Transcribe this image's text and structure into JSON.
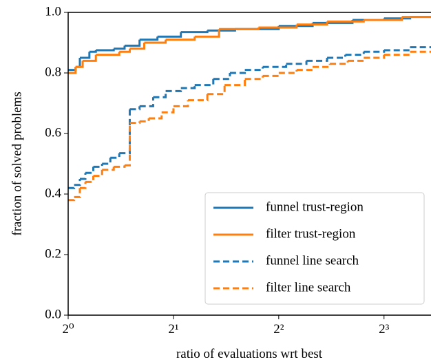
{
  "chart_data": {
    "type": "step",
    "xlabel": "ratio of evaluations wrt best",
    "ylabel": "fraction of solved problems",
    "xscale": "log2",
    "xlim": [
      1,
      10.9
    ],
    "ylim": [
      0,
      1
    ],
    "xticks": [
      {
        "value": 1,
        "label": "2⁰"
      },
      {
        "value": 2,
        "label": "2¹"
      },
      {
        "value": 4,
        "label": "2²"
      },
      {
        "value": 8,
        "label": "2³"
      }
    ],
    "yticks": [
      {
        "value": 0,
        "label": "0.0"
      },
      0.2,
      0.4,
      0.6,
      0.8,
      {
        "value": 1,
        "label": "1.0"
      }
    ],
    "legend": "lower right",
    "series": [
      {
        "name": "funnel trust-region",
        "color": "#1f77b4",
        "style": "solid",
        "x": [
          1,
          1.05,
          1.08,
          1.15,
          1.2,
          1.35,
          1.45,
          1.6,
          1.8,
          2.1,
          2.5,
          3.0,
          4,
          5,
          6.5,
          8,
          9.5
        ],
        "values": [
          0.81,
          0.82,
          0.85,
          0.87,
          0.875,
          0.88,
          0.89,
          0.91,
          0.92,
          0.935,
          0.94,
          0.945,
          0.955,
          0.965,
          0.975,
          0.98,
          0.985
        ]
      },
      {
        "name": "filter trust-region",
        "color": "#ff7f0e",
        "style": "solid",
        "x": [
          1,
          1.05,
          1.1,
          1.2,
          1.4,
          1.5,
          1.65,
          1.9,
          2.3,
          2.7,
          3.5,
          4.5,
          5.5,
          7,
          9
        ],
        "values": [
          0.8,
          0.82,
          0.84,
          0.86,
          0.87,
          0.88,
          0.9,
          0.91,
          0.92,
          0.945,
          0.95,
          0.96,
          0.97,
          0.975,
          0.985
        ]
      },
      {
        "name": "funnel line search",
        "color": "#1f77b4",
        "style": "dashed",
        "x": [
          1,
          1.04,
          1.08,
          1.12,
          1.18,
          1.25,
          1.32,
          1.4,
          1.5,
          1.6,
          1.75,
          1.9,
          2.1,
          2.3,
          2.6,
          2.9,
          3.2,
          3.6,
          4.2,
          4.8,
          5.5,
          6.2,
          7,
          8,
          9.5
        ],
        "values": [
          0.42,
          0.43,
          0.45,
          0.47,
          0.49,
          0.5,
          0.52,
          0.535,
          0.68,
          0.69,
          0.72,
          0.74,
          0.75,
          0.76,
          0.78,
          0.8,
          0.81,
          0.82,
          0.83,
          0.84,
          0.85,
          0.86,
          0.87,
          0.875,
          0.885
        ]
      },
      {
        "name": "filter line search",
        "color": "#ff7f0e",
        "style": "dashed",
        "x": [
          1,
          1.04,
          1.08,
          1.12,
          1.18,
          1.25,
          1.35,
          1.45,
          1.5,
          1.6,
          1.7,
          1.85,
          2.0,
          2.2,
          2.5,
          2.8,
          3.2,
          3.6,
          4.0,
          4.5,
          5,
          5.6,
          6.3,
          7,
          8,
          9.5
        ],
        "values": [
          0.38,
          0.39,
          0.42,
          0.44,
          0.46,
          0.48,
          0.49,
          0.495,
          0.635,
          0.64,
          0.65,
          0.67,
          0.69,
          0.71,
          0.73,
          0.76,
          0.78,
          0.79,
          0.8,
          0.81,
          0.82,
          0.83,
          0.84,
          0.85,
          0.86,
          0.87
        ]
      }
    ]
  }
}
